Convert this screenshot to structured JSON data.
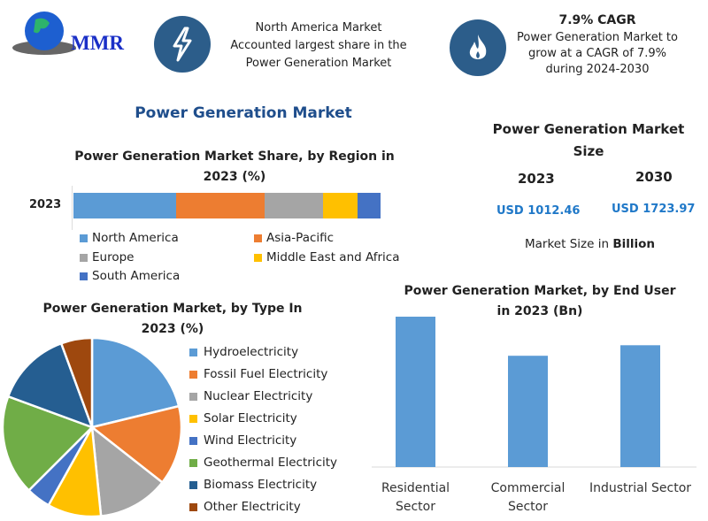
{
  "logo": {
    "text": "MMR"
  },
  "header": {
    "fact1": {
      "icon": "lightning-icon",
      "lines": [
        "North America Market",
        "Accounted largest share in the",
        "Power Generation Market"
      ]
    },
    "fact2": {
      "icon": "flame-icon",
      "title": "7.9% CAGR",
      "lines": [
        "Power Generation Market to",
        "grow at a CAGR of 7.9%",
        "during 2024-2030"
      ]
    }
  },
  "main_title": "Power Generation Market",
  "market_size": {
    "title_lines": [
      "Power Generation Market",
      "Size"
    ],
    "years": [
      "2023",
      "2030"
    ],
    "values": [
      "USD 1012.46",
      "USD 1723.97"
    ],
    "note_prefix": "Market Size in ",
    "note_bold": "Billion",
    "value_color": "#1f78c8"
  },
  "chart_data": [
    {
      "type": "bar",
      "stacked": true,
      "orientation": "horizontal",
      "title_lines": [
        "Power Generation Market Share, by Region in",
        "2023 (%)"
      ],
      "categories": [
        "2023"
      ],
      "series": [
        {
          "name": "North America",
          "values": [
            33.3
          ],
          "color": "#5b9bd5"
        },
        {
          "name": "Asia-Pacific",
          "values": [
            29.0
          ],
          "color": "#ed7d31"
        },
        {
          "name": "Europe",
          "values": [
            19.0
          ],
          "color": "#a5a5a5"
        },
        {
          "name": "Middle East and Africa",
          "values": [
            11.2
          ],
          "color": "#ffc000"
        },
        {
          "name": "South America",
          "values": [
            7.5
          ],
          "color": "#4472c4"
        }
      ],
      "legend": "bottom"
    },
    {
      "type": "pie",
      "title_lines": [
        "Power Generation Market, by Type In",
        "2023 (%)"
      ],
      "slices": [
        {
          "label": "Hydroelectricity",
          "value": 21.2,
          "color": "#5b9bd5"
        },
        {
          "label": "Fossil Fuel Electricity",
          "value": 14.4,
          "color": "#ed7d31"
        },
        {
          "label": "Nuclear Electricity",
          "value": 12.8,
          "color": "#a5a5a5"
        },
        {
          "label": "Solar Electricity",
          "value": 9.7,
          "color": "#ffc000"
        },
        {
          "label": "Wind Electricity",
          "value": 4.4,
          "color": "#4472c4"
        },
        {
          "label": "Geothermal Electricity",
          "value": 18.1,
          "color": "#70ad47"
        },
        {
          "label": "Biomass Electricity",
          "value": 13.8,
          "color": "#255e91"
        },
        {
          "label": "Other Electricity",
          "value": 5.6,
          "color": "#9e480e"
        }
      ],
      "legend": "right"
    },
    {
      "type": "bar",
      "title_lines": [
        "Power Generation Market, by End User",
        "in 2023 (Bn)"
      ],
      "categories": [
        [
          "Residential",
          "Sector"
        ],
        [
          "Commercial",
          "Sector"
        ],
        [
          "Industrial Sector"
        ]
      ],
      "values": [
        100,
        74,
        81
      ],
      "color": "#5b9bd5"
    }
  ]
}
